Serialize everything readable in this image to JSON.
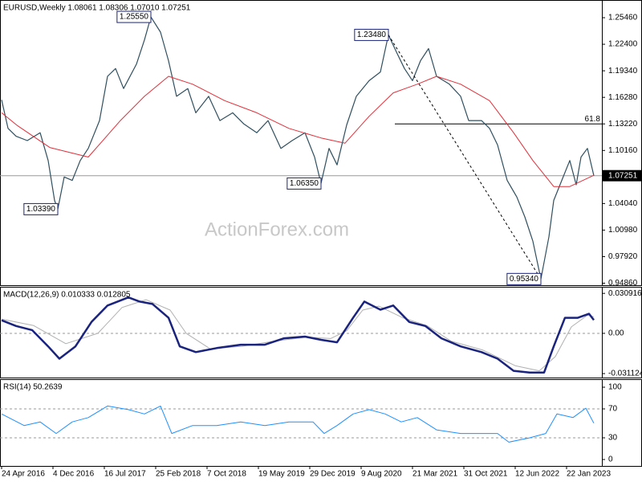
{
  "chart_data": [
    {
      "type": "line",
      "title": "EURUSD,Weekly  1.08061 1.08306 1.07010 1.07251",
      "watermark": "ActionForex.com",
      "xlim": [
        -1,
        374
      ],
      "ylim": [
        0.9463,
        1.275
      ],
      "yticks": [
        {
          "value": 1.2546,
          "label": "1.25460"
        },
        {
          "value": 1.224,
          "label": "1.22400"
        },
        {
          "value": 1.1934,
          "label": "1.19340"
        },
        {
          "value": 1.1628,
          "label": "1.16280"
        },
        {
          "value": 1.1322,
          "label": "1.13220"
        },
        {
          "value": 1.1016,
          "label": "1.10160"
        },
        {
          "value": 1.0404,
          "label": "1.04040"
        },
        {
          "value": 1.0098,
          "label": "1.00980"
        },
        {
          "value": 0.9792,
          "label": "0.97920"
        },
        {
          "value": 0.9486,
          "label": "0.94860"
        }
      ],
      "series": [
        {
          "color": "#2f4f5f",
          "width": 1.2,
          "x": [
            0,
            4,
            9,
            16,
            24,
            29,
            33,
            35,
            39,
            44,
            49,
            54,
            61,
            66,
            71,
            76,
            84,
            89,
            93,
            99,
            104,
            109,
            116,
            121,
            129,
            136,
            144,
            151,
            159,
            166,
            174,
            181,
            189,
            195,
            199,
            204,
            209,
            215,
            221,
            229,
            236,
            241,
            246,
            251,
            256,
            261,
            266,
            271,
            279,
            286,
            291,
            299,
            304,
            309,
            315,
            321,
            326,
            331,
            336,
            341,
            344,
            349,
            354,
            358,
            361,
            365,
            369
          ],
          "values": [
            1.16,
            1.127,
            1.118,
            1.113,
            1.122,
            1.09,
            1.044,
            1.0339,
            1.071,
            1.067,
            1.09,
            1.104,
            1.136,
            1.187,
            1.196,
            1.173,
            1.201,
            1.229,
            1.2555,
            1.238,
            1.205,
            1.164,
            1.173,
            1.145,
            1.164,
            1.136,
            1.145,
            1.132,
            1.122,
            1.136,
            1.104,
            1.113,
            1.122,
            1.094,
            1.0635,
            1.104,
            1.085,
            1.131,
            1.164,
            1.182,
            1.192,
            1.2348,
            1.215,
            1.196,
            1.182,
            1.205,
            1.219,
            1.187,
            1.178,
            1.164,
            1.136,
            1.136,
            1.127,
            1.108,
            1.067,
            1.048,
            1.025,
            0.997,
            0.9534,
            1.002,
            1.044,
            1.067,
            1.09,
            1.062,
            1.094,
            1.104,
            1.07251
          ]
        },
        {
          "color": "#e0303a",
          "width": 1,
          "x": [
            0,
            10,
            30,
            54,
            74,
            89,
            104,
            119,
            139,
            159,
            179,
            199,
            214,
            229,
            244,
            259,
            271,
            286,
            304,
            319,
            331,
            344,
            354,
            369
          ],
          "values": [
            1.145,
            1.13,
            1.105,
            1.094,
            1.136,
            1.164,
            1.187,
            1.178,
            1.159,
            1.145,
            1.127,
            1.116,
            1.11,
            1.141,
            1.168,
            1.178,
            1.187,
            1.178,
            1.159,
            1.122,
            1.09,
            1.06,
            1.06,
            1.073
          ]
        }
      ],
      "annotations": [
        {
          "x": 93,
          "value": 1.2555,
          "label": "1.25550"
        },
        {
          "x": 35,
          "value": 1.0339,
          "label": "1.03390"
        },
        {
          "x": 199,
          "value": 1.0635,
          "label": "1.06350"
        },
        {
          "x": 241,
          "value": 1.2348,
          "label": "1.23480"
        },
        {
          "x": 336,
          "value": 0.9534,
          "label": "0.95340"
        }
      ],
      "trendline": {
        "x": [
          241,
          336
        ],
        "values": [
          1.2348,
          0.9534
        ]
      },
      "fib": {
        "x": 245,
        "value": 1.1322,
        "label": "61.8"
      },
      "last": {
        "value": 1.07251,
        "label": "1.07251"
      }
    },
    {
      "type": "line",
      "title": "MACD(12,26,9) 0.010333 0.012805",
      "xlim": [
        -1,
        374
      ],
      "ylim": [
        -0.0342,
        0.036
      ],
      "yticks": [
        0.030916,
        {
          "value": 0,
          "label": "0.00"
        },
        -0.031124
      ],
      "levels": [
        0
      ],
      "series": [
        {
          "color": "#b0b0b0",
          "width": 1,
          "x": [
            0,
            20,
            40,
            60,
            75,
            90,
            105,
            115,
            130,
            150,
            170,
            190,
            205,
            215,
            225,
            235,
            250,
            265,
            280,
            300,
            320,
            335,
            345,
            355,
            365,
            369
          ],
          "values": [
            0.011,
            0.006,
            -0.008,
            0.0,
            0.02,
            0.026,
            0.018,
            0.0,
            -0.012,
            -0.01,
            -0.006,
            -0.003,
            -0.004,
            0.002,
            0.018,
            0.021,
            0.012,
            0.006,
            -0.006,
            -0.013,
            -0.025,
            -0.029,
            -0.018,
            0.005,
            0.014,
            0.0128
          ]
        },
        {
          "color": "#1a237e",
          "width": 2.5,
          "x": [
            0,
            9,
            19,
            29,
            36,
            46,
            56,
            66,
            79,
            86,
            94,
            104,
            111,
            121,
            134,
            149,
            164,
            176,
            189,
            199,
            209,
            219,
            226,
            236,
            244,
            254,
            264,
            274,
            286,
            299,
            309,
            319,
            329,
            338,
            344,
            351,
            359,
            366,
            369
          ],
          "values": [
            0.0101,
            0.0057,
            0.0025,
            -0.0101,
            -0.0196,
            -0.0101,
            0.0088,
            0.0215,
            0.0278,
            0.0246,
            0.0227,
            0.012,
            -0.0101,
            -0.0145,
            -0.0114,
            -0.0088,
            -0.0088,
            -0.0038,
            -0.0025,
            -0.005,
            -0.0069,
            0.012,
            0.0246,
            0.0183,
            0.0215,
            0.0088,
            0.0057,
            -0.0038,
            -0.0101,
            -0.0145,
            -0.0196,
            -0.029,
            -0.0303,
            -0.0303,
            -0.0101,
            0.012,
            0.012,
            0.0151,
            0.0103
          ]
        }
      ]
    },
    {
      "type": "line",
      "title": "RSI(14) 50.2639",
      "xlim": [
        -1,
        374
      ],
      "ylim": [
        -8.9,
        111.1
      ],
      "yticks": [
        100,
        70,
        30,
        0
      ],
      "levels": [
        70,
        30
      ],
      "series": [
        {
          "color": "#1e90ff",
          "width": 1,
          "x": [
            0,
            14,
            24,
            34,
            44,
            54,
            66,
            79,
            89,
            99,
            106,
            119,
            134,
            149,
            164,
            179,
            194,
            201,
            209,
            219,
            229,
            239,
            249,
            259,
            271,
            286,
            299,
            309,
            316,
            329,
            339,
            346,
            356,
            364,
            369
          ],
          "values": [
            63,
            47,
            52,
            36,
            52,
            58,
            74,
            69,
            63,
            74,
            36,
            47,
            47,
            52,
            47,
            52,
            52,
            36,
            47,
            63,
            69,
            63,
            52,
            58,
            41,
            36,
            36,
            36,
            24,
            30,
            36,
            63,
            58,
            71,
            50.2639
          ]
        }
      ],
      "xticks": [
        {
          "value": 0,
          "label": "24 Apr 2016"
        },
        {
          "value": 32,
          "label": "4 Dec 2016"
        },
        {
          "value": 64,
          "label": "16 Jul 2017"
        },
        {
          "value": 96,
          "label": "25 Feb 2018"
        },
        {
          "value": 128,
          "label": "7 Oct 2018"
        },
        {
          "value": 160,
          "label": "19 May 2019"
        },
        {
          "value": 192,
          "label": "29 Dec 2019"
        },
        {
          "value": 224,
          "label": "9 Aug 2020"
        },
        {
          "value": 256,
          "label": "21 Mar 2021"
        },
        {
          "value": 288,
          "label": "31 Oct 2021"
        },
        {
          "value": 320,
          "label": "12 Jun 2022"
        },
        {
          "value": 352,
          "label": "22 Jan 2023"
        }
      ]
    }
  ]
}
